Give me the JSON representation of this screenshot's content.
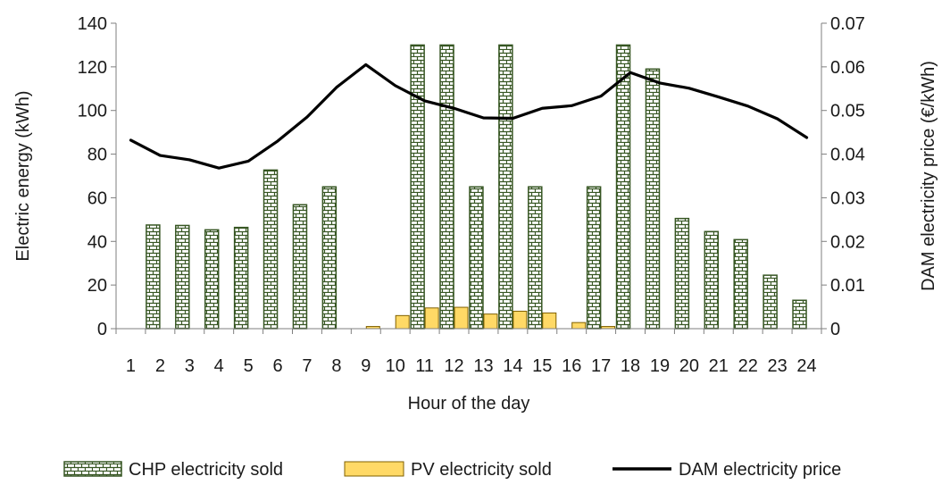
{
  "chart_data": {
    "type": "bar",
    "categories": [
      "1",
      "2",
      "3",
      "4",
      "5",
      "6",
      "7",
      "8",
      "9",
      "10",
      "11",
      "12",
      "13",
      "14",
      "15",
      "16",
      "17",
      "18",
      "19",
      "20",
      "21",
      "22",
      "23",
      "24"
    ],
    "xlabel": "Hour of the day",
    "ylabel": "Electric energy (kWh)",
    "y2label": "DAM electricity price (€/kWh)",
    "ylim": [
      0,
      140
    ],
    "y2lim": [
      0,
      0.07
    ],
    "yticks": [
      "0",
      "20",
      "40",
      "60",
      "80",
      "100",
      "120",
      "140"
    ],
    "y2ticks": [
      "0",
      "0.01",
      "0.02",
      "0.03",
      "0.04",
      "0.05",
      "0.06",
      "0.07"
    ],
    "series": [
      {
        "name": "CHP electricity sold",
        "type": "bar",
        "axis": "left",
        "color": "#375623",
        "values": [
          0,
          47.5,
          47.3,
          45.3,
          46.4,
          72.7,
          56.8,
          65,
          0,
          0,
          130,
          130,
          65,
          130,
          65,
          0,
          65,
          130,
          119,
          50.5,
          44.5,
          40.8,
          24.5,
          13
        ]
      },
      {
        "name": "PV electricity sold",
        "type": "bar",
        "axis": "left",
        "color": "#FFD966",
        "values": [
          0,
          0,
          0,
          0,
          0,
          0,
          0,
          0,
          1,
          6,
          9.5,
          9.8,
          6.7,
          8,
          7.2,
          2.8,
          1,
          0,
          0,
          0,
          0,
          0,
          0,
          0
        ]
      },
      {
        "name": "DAM electricity price",
        "type": "line",
        "axis": "right",
        "color": "#000000",
        "values": [
          0.0432,
          0.0397,
          0.0387,
          0.0368,
          0.0384,
          0.043,
          0.0485,
          0.0553,
          0.0605,
          0.0557,
          0.0522,
          0.0505,
          0.0483,
          0.0482,
          0.0505,
          0.0511,
          0.0533,
          0.0587,
          0.0563,
          0.0551,
          0.0531,
          0.051,
          0.0481,
          0.0438
        ]
      }
    ],
    "legend": {
      "position": "bottom",
      "items": [
        "CHP electricity sold",
        "PV electricity sold",
        "DAM electricity price"
      ]
    }
  }
}
